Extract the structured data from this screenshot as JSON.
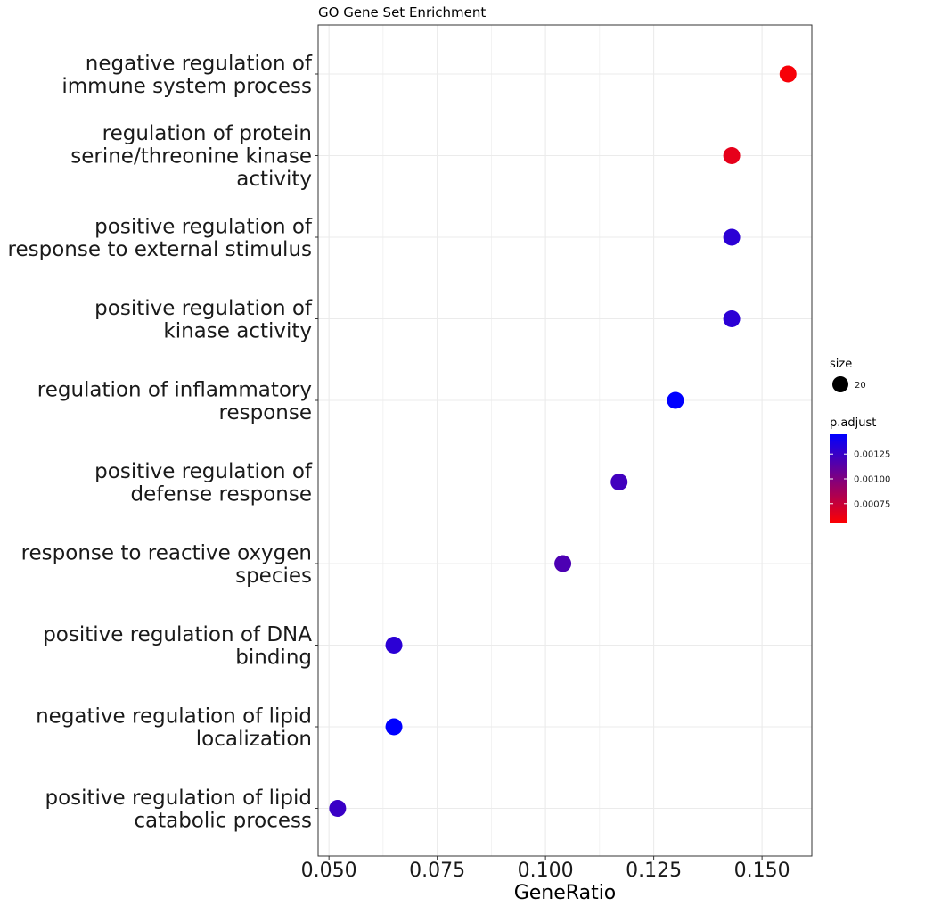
{
  "chart_data": {
    "type": "scatter",
    "title": "GO Gene Set Enrichment",
    "xlabel": "GeneRatio",
    "ylabel": "",
    "xlim": [
      0.0475,
      0.1615
    ],
    "xticks": [
      "0.050",
      "0.075",
      "0.100",
      "0.125",
      "0.150"
    ],
    "xtick_values": [
      0.05,
      0.075,
      0.1,
      0.125,
      0.15
    ],
    "grid": true,
    "legend_position": "right",
    "categories": [
      "negative regulation of\nimmune system process",
      "regulation of protein\nserine/threonine kinase\nactivity",
      "positive regulation of\nresponse to external stimulus",
      "positive regulation of\nkinase activity",
      "regulation of inflammatory\nresponse",
      "positive regulation of\ndefense response",
      "response to reactive oxygen\nspecies",
      "positive regulation of DNA\nbinding",
      "negative regulation of lipid\nlocalization",
      "positive regulation of lipid\ncatabolic process"
    ],
    "x": [
      0.156,
      0.143,
      0.143,
      0.143,
      0.13,
      0.117,
      0.104,
      0.065,
      0.065,
      0.052
    ],
    "p_adjust": [
      0.00058,
      0.00064,
      0.0013,
      0.0013,
      0.00145,
      0.00122,
      0.00118,
      0.0013,
      0.00145,
      0.00125
    ],
    "size": [
      20,
      20,
      20,
      20,
      20,
      20,
      20,
      20,
      20,
      20
    ],
    "size_legend": {
      "title": "size",
      "value": "20"
    },
    "color_legend": {
      "title": "p.adjust",
      "range": [
        0.00055,
        0.00145
      ],
      "ticks": [
        "0.00125",
        "0.00100",
        "0.00075"
      ],
      "tick_values": [
        0.00125,
        0.001,
        0.00075
      ],
      "low_color": "#ff0000",
      "high_color": "#0000ff"
    },
    "colors": {
      "point_low": "#ff0000",
      "point_high": "#0000ff",
      "grid": "#ebebeb",
      "panel_border": "#333333"
    }
  }
}
